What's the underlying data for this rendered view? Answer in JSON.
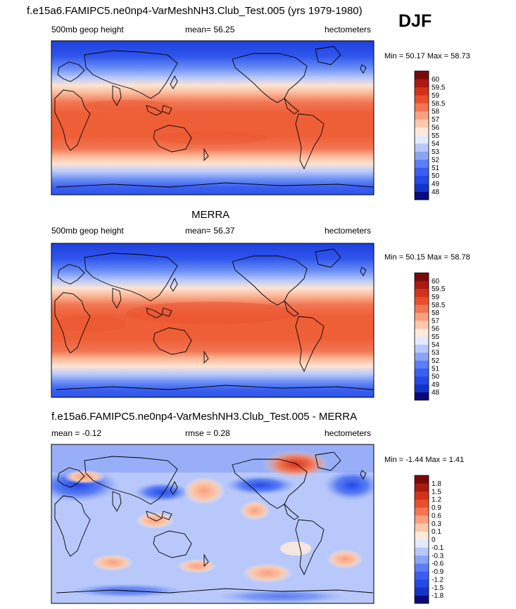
{
  "season": "DJF",
  "chart_data": [
    {
      "type": "heatmap",
      "title": "f.e15a6.FAMIPC5.ne0np4-VarMeshNH3.Club_Test.005 (yrs 1979-1980)",
      "left_label": "500mb geop height",
      "center_label": "mean=  56.25",
      "right_label": "hectometers",
      "minmax": "Min =  50.17 Max =  58.73",
      "min": 50.17,
      "max": 58.73,
      "mean": 56.25,
      "levels": [
        "48",
        "49",
        "50",
        "51",
        "52",
        "53",
        "54",
        "55",
        "56",
        "57",
        "58",
        "58.5",
        "59",
        "59.5",
        "60"
      ],
      "colors": [
        "#0a0a7a",
        "#1434c8",
        "#2449e6",
        "#3a5ef0",
        "#5a7ef4",
        "#8aa4f6",
        "#b8c8fa",
        "#e2eafd",
        "#fde9dc",
        "#fcc8ac",
        "#f8a080",
        "#f27654",
        "#e8502c",
        "#d2321a",
        "#aa1a10",
        "#7a0a0a"
      ]
    },
    {
      "type": "heatmap",
      "title": "MERRA",
      "left_label": "500mb geop height",
      "center_label": "mean=  56.37",
      "right_label": "hectometers",
      "minmax": "Min =  50.15 Max =  58.78",
      "min": 50.15,
      "max": 58.78,
      "mean": 56.37,
      "levels": [
        "48",
        "49",
        "50",
        "51",
        "52",
        "53",
        "54",
        "55",
        "56",
        "57",
        "58",
        "58.5",
        "59",
        "59.5",
        "60"
      ],
      "colors": [
        "#0a0a7a",
        "#1434c8",
        "#2449e6",
        "#3a5ef0",
        "#5a7ef4",
        "#8aa4f6",
        "#b8c8fa",
        "#e2eafd",
        "#fde9dc",
        "#fcc8ac",
        "#f8a080",
        "#f27654",
        "#e8502c",
        "#d2321a",
        "#aa1a10",
        "#7a0a0a"
      ]
    },
    {
      "type": "heatmap",
      "title": "f.e15a6.FAMIPC5.ne0np4-VarMeshNH3.Club_Test.005 - MERRA",
      "left_label": "mean =  -0.12",
      "center_label": "rmse =   0.28",
      "right_label": "hectometers",
      "minmax": "Min =  -1.44 Max =   1.41",
      "min": -1.44,
      "max": 1.41,
      "mean": -0.12,
      "rmse": 0.28,
      "levels": [
        "-1.8",
        "-1.5",
        "-1.2",
        "-0.9",
        "-0.6",
        "-0.3",
        "-0.1",
        "0",
        "0.1",
        "0.3",
        "0.6",
        "0.9",
        "1.2",
        "1.5",
        "1.8"
      ],
      "colors": [
        "#0a0a7a",
        "#1434c8",
        "#2449e6",
        "#3a5ef0",
        "#5a7ef4",
        "#8aa4f6",
        "#b8c8fa",
        "#e2eafd",
        "#fde9dc",
        "#fcc8ac",
        "#f8a080",
        "#f27654",
        "#e8502c",
        "#d2321a",
        "#aa1a10",
        "#7a0a0a"
      ]
    }
  ]
}
